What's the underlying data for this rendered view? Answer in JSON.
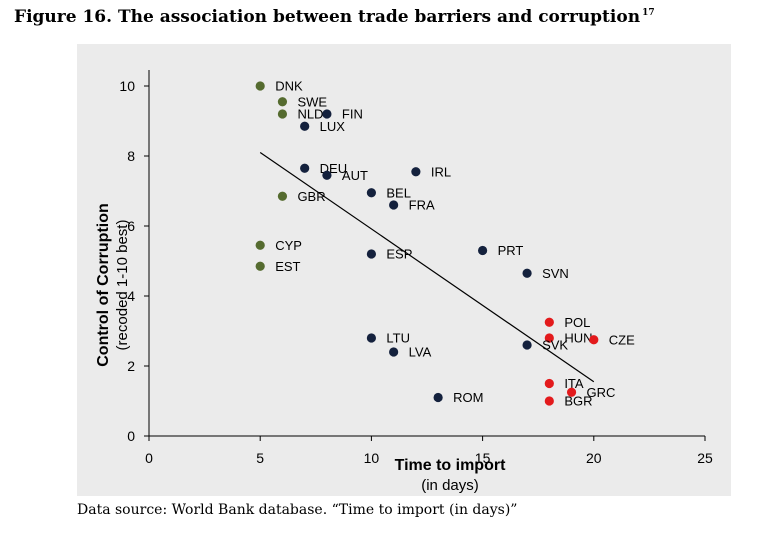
{
  "figure": {
    "title": "Figure 16. The association between trade barriers and corruption",
    "footnote_mark": "17",
    "source": "Data source: World Bank database. “Time to import (in days)”"
  },
  "colors": {
    "background": "#ebebeb",
    "dark": "#14213d",
    "green": "#556b2f",
    "red": "#e31a1c",
    "line": "#000000"
  },
  "chart_data": {
    "type": "scatter",
    "title": "",
    "xlabel": "Time to import",
    "xlabel_sub": "(in days)",
    "ylabel": "Control of Corruption",
    "ylabel_sub": "(recoded 1-10 best)",
    "xlim": [
      0,
      25
    ],
    "ylim": [
      0,
      10
    ],
    "x_ticks": [
      0,
      5,
      10,
      15,
      20,
      25
    ],
    "y_ticks": [
      0,
      2,
      4,
      6,
      8,
      10
    ],
    "grid": false,
    "trendline": {
      "x": [
        5,
        20
      ],
      "y": [
        8.1,
        1.55
      ]
    },
    "points": [
      {
        "label": "DNK",
        "x": 5,
        "y": 10.0,
        "group": "green"
      },
      {
        "label": "SWE",
        "x": 6,
        "y": 9.55,
        "group": "green"
      },
      {
        "label": "NLD",
        "x": 6,
        "y": 9.2,
        "group": "green"
      },
      {
        "label": "FIN",
        "x": 8,
        "y": 9.2,
        "group": "dark"
      },
      {
        "label": "LUX",
        "x": 7,
        "y": 8.85,
        "group": "dark"
      },
      {
        "label": "DEU",
        "x": 7,
        "y": 7.65,
        "group": "dark"
      },
      {
        "label": "AUT",
        "x": 8,
        "y": 7.45,
        "group": "dark"
      },
      {
        "label": "IRL",
        "x": 12,
        "y": 7.55,
        "group": "dark"
      },
      {
        "label": "BEL",
        "x": 10,
        "y": 6.95,
        "group": "dark"
      },
      {
        "label": "GBR",
        "x": 6,
        "y": 6.85,
        "group": "green"
      },
      {
        "label": "FRA",
        "x": 11,
        "y": 6.6,
        "group": "dark"
      },
      {
        "label": "CYP",
        "x": 5,
        "y": 5.45,
        "group": "green"
      },
      {
        "label": "EST",
        "x": 5,
        "y": 4.85,
        "group": "green"
      },
      {
        "label": "ESP",
        "x": 10,
        "y": 5.2,
        "group": "dark"
      },
      {
        "label": "PRT",
        "x": 15,
        "y": 5.3,
        "group": "dark"
      },
      {
        "label": "SVN",
        "x": 17,
        "y": 4.65,
        "group": "dark"
      },
      {
        "label": "POL",
        "x": 18,
        "y": 3.25,
        "group": "red"
      },
      {
        "label": "HUN",
        "x": 18,
        "y": 2.8,
        "group": "red"
      },
      {
        "label": "CZE",
        "x": 20,
        "y": 2.75,
        "group": "red"
      },
      {
        "label": "LTU",
        "x": 10,
        "y": 2.8,
        "group": "dark"
      },
      {
        "label": "SVK",
        "x": 17,
        "y": 2.6,
        "group": "dark"
      },
      {
        "label": "LVA",
        "x": 11,
        "y": 2.4,
        "group": "dark"
      },
      {
        "label": "ITA",
        "x": 18,
        "y": 1.5,
        "group": "red"
      },
      {
        "label": "GRC",
        "x": 19,
        "y": 1.25,
        "group": "red"
      },
      {
        "label": "ROM",
        "x": 13,
        "y": 1.1,
        "group": "dark"
      },
      {
        "label": "BGR",
        "x": 18,
        "y": 1.0,
        "group": "red"
      }
    ]
  }
}
